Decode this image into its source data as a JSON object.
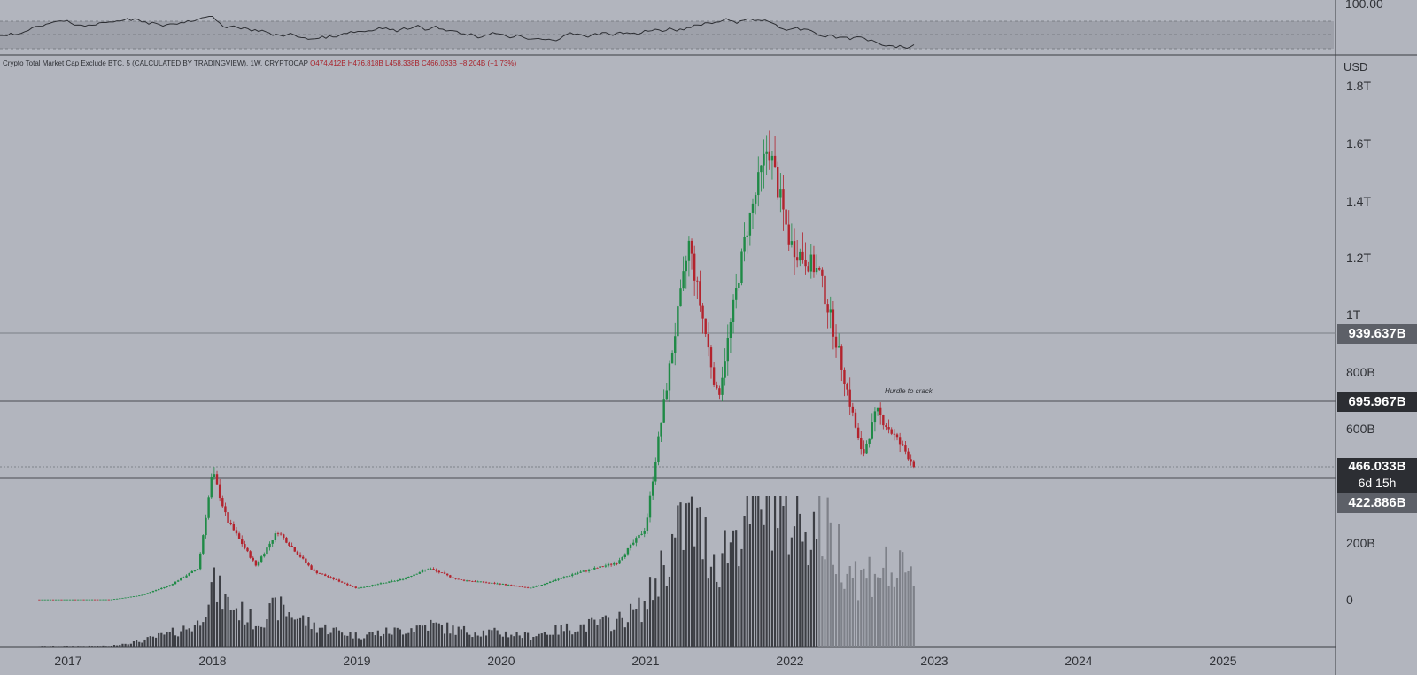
{
  "legend": {
    "symbol": "Crypto Total Market Cap Exclude BTC, 5 (CALCULATED BY TRADINGVIEW), 1W, CRYPTOCAP",
    "ohlc": "O474.412B H476.818B L458.338B C466.033B −8.204B (−1.73%)"
  },
  "axis": {
    "currency": "USD",
    "y_ticks": [
      "1.8T",
      "1.6T",
      "1.4T",
      "1.2T",
      "1T",
      "800B",
      "600B",
      "200B",
      "0"
    ],
    "x_ticks": [
      "2017",
      "2018",
      "2019",
      "2020",
      "2021",
      "2022",
      "2023",
      "2024",
      "2025"
    ]
  },
  "rsi": {
    "label": "100.00"
  },
  "price_tags": {
    "level_high": "939.637B",
    "level_mid": "695.967B",
    "last": "466.033B",
    "countdown": "6d 15h",
    "level_low": "422.886B"
  },
  "annotation": "Hurdle to crack.",
  "colors": {
    "up": "#1f8a46",
    "down": "#b3232d",
    "background": "#b2b5be",
    "volume": "#3c3e44"
  },
  "chart_data": {
    "type": "candlestick",
    "title": "",
    "ylabel": "USD",
    "y_range": [
      0,
      1800000000000
    ],
    "horizontal_levels": [
      939637000000,
      695967000000,
      466033000000,
      422886000000
    ],
    "x_range": [
      "2017",
      "2025"
    ],
    "points": [
      {
        "t": "2016.8",
        "v": 0.7
      },
      {
        "t": "2017.0",
        "v": 0.8
      },
      {
        "t": "2017.3",
        "v": 1
      },
      {
        "t": "2017.5",
        "v": 15
      },
      {
        "t": "2017.7",
        "v": 50
      },
      {
        "t": "2017.9",
        "v": 110
      },
      {
        "t": "2018.0",
        "v": 450
      },
      {
        "t": "2018.1",
        "v": 280
      },
      {
        "t": "2018.3",
        "v": 120
      },
      {
        "t": "2018.45",
        "v": 240
      },
      {
        "t": "2018.7",
        "v": 100
      },
      {
        "t": "2019.0",
        "v": 40
      },
      {
        "t": "2019.3",
        "v": 70
      },
      {
        "t": "2019.5",
        "v": 110
      },
      {
        "t": "2019.7",
        "v": 70
      },
      {
        "t": "2020.0",
        "v": 55
      },
      {
        "t": "2020.2",
        "v": 40
      },
      {
        "t": "2020.5",
        "v": 90
      },
      {
        "t": "2020.8",
        "v": 130
      },
      {
        "t": "2021.0",
        "v": 250
      },
      {
        "t": "2021.1",
        "v": 600
      },
      {
        "t": "2021.3",
        "v": 1250
      },
      {
        "t": "2021.5",
        "v": 700
      },
      {
        "t": "2021.7",
        "v": 1300
      },
      {
        "t": "2021.85",
        "v": 1600
      },
      {
        "t": "2022.0",
        "v": 1250
      },
      {
        "t": "2022.2",
        "v": 1150
      },
      {
        "t": "2022.3",
        "v": 950
      },
      {
        "t": "2022.5",
        "v": 500
      },
      {
        "t": "2022.6",
        "v": 660
      },
      {
        "t": "2022.8",
        "v": 520
      },
      {
        "t": "2022.87",
        "v": 466
      }
    ]
  }
}
